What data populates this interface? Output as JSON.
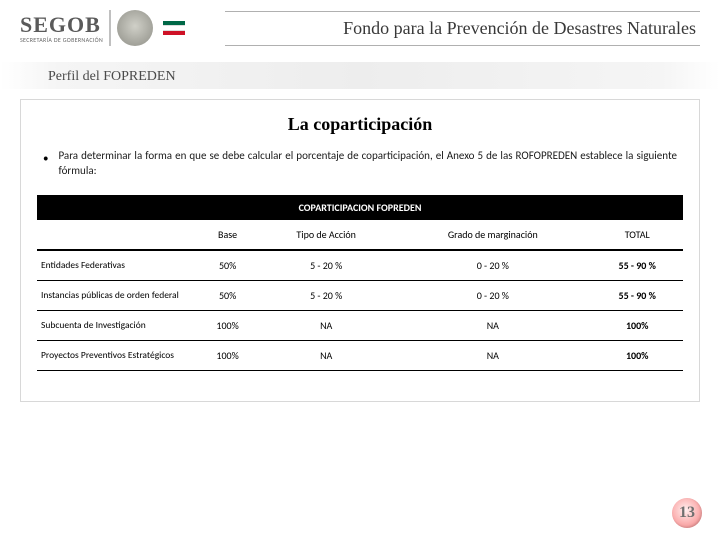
{
  "header": {
    "logo_main": "SEGOB",
    "logo_sub": "SECRETARÍA DE GOBERNACIÓN",
    "title": "Fondo para la Prevención de Desastres Naturales"
  },
  "subheader": "Perfil del FOPREDEN",
  "slide": {
    "title": "La coparticipación",
    "bullet": "Para determinar la forma en que se debe calcular el porcentaje de coparticipación, el Anexo 5 de las ROFOPREDEN establece la siguiente fórmula:"
  },
  "table": {
    "banner": "COPARTICIPACION FOPREDEN",
    "columns": [
      "",
      "Base",
      "Tipo de Acción",
      "Grado de marginación",
      "TOTAL"
    ],
    "rows": [
      {
        "label": "Entidades Federativas",
        "base": "50%",
        "tipo": "5 - 20 %",
        "grado": "0 - 20 %",
        "total": "55 - 90 %"
      },
      {
        "label": "Instancias públicas de orden federal",
        "base": "50%",
        "tipo": "5 - 20 %",
        "grado": "0 - 20 %",
        "total": "55 - 90 %"
      },
      {
        "label": "Subcuenta de Investigación",
        "base": "100%",
        "tipo": "NA",
        "grado": "NA",
        "total": "100%"
      },
      {
        "label": "Proyectos Preventivos Estratégicos",
        "base": "100%",
        "tipo": "NA",
        "grado": "NA",
        "total": "100%"
      }
    ]
  },
  "page_number": "13",
  "colors": {
    "text_dark": "#383838",
    "table_header_bg": "#000000",
    "table_header_fg": "#ffffff",
    "border": "#d8d8d8",
    "badge_grad_inner": "#fff0f0",
    "badge_grad_outer": "#e88080"
  }
}
